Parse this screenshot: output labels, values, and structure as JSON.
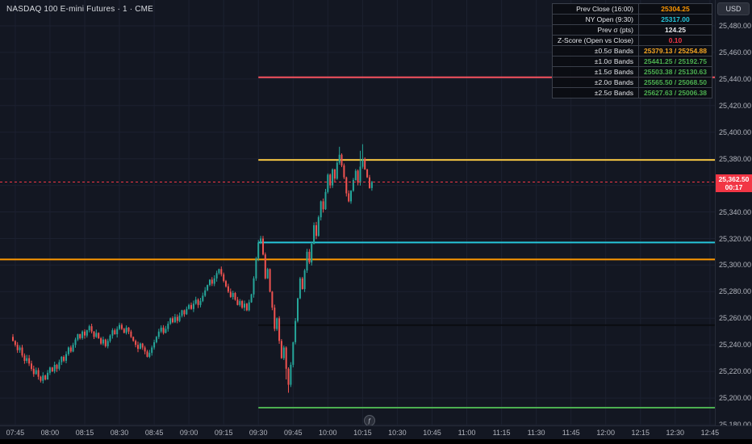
{
  "header": {
    "title": "NASDAQ 100 E-mini Futures · 1 · CME",
    "currency": "USD"
  },
  "stats_table": {
    "rows": [
      {
        "label": "Prev Close (16:00)",
        "value": "25304.25",
        "color": "#ff9800"
      },
      {
        "label": "NY Open (9:30)",
        "value": "25317.00",
        "color": "#26c6da"
      },
      {
        "label": "Prev σ (pts)",
        "value": "124.25",
        "color": "#e8eaed"
      },
      {
        "label": "Z-Score (Open vs Close)",
        "value": "0.10",
        "color": "#f23645"
      },
      {
        "label": "±0.5σ Bands",
        "value": "25379.13 / 25254.88",
        "color": "#f5a623"
      },
      {
        "label": "±1.0σ Bands",
        "value": "25441.25 / 25192.75",
        "color": "#4caf50"
      },
      {
        "label": "±1.5σ Bands",
        "value": "25503.38 / 25130.63",
        "color": "#4caf50"
      },
      {
        "label": "±2.0σ Bands",
        "value": "25565.50 / 25068.50",
        "color": "#4caf50"
      },
      {
        "label": "±2.5σ Bands",
        "value": "25627.63 / 25006.38",
        "color": "#4caf50"
      }
    ]
  },
  "price_axis": {
    "labels": [
      "25,480.00",
      "25,460.00",
      "25,440.00",
      "25,420.00",
      "25,400.00",
      "25,380.00",
      "25,360.00",
      "25,340.00",
      "25,320.00",
      "25,300.00",
      "25,280.00",
      "25,260.00",
      "25,240.00",
      "25,220.00",
      "25,200.00",
      "25,180.00"
    ],
    "top_price": 25480,
    "bottom_price": 25180,
    "step": 20
  },
  "time_axis": {
    "labels": [
      "07:45",
      "08:00",
      "08:15",
      "08:30",
      "08:45",
      "09:00",
      "09:15",
      "09:30",
      "09:45",
      "10:00",
      "10:15",
      "10:30",
      "10:45",
      "11:00",
      "11:15",
      "11:30",
      "11:45",
      "12:00",
      "12:15",
      "12:30",
      "12:45"
    ]
  },
  "current_price": {
    "value": "25,362.50",
    "countdown": "00:17",
    "price": 25362.5,
    "color": "#f23645"
  },
  "levels": [
    {
      "name": "prev-close",
      "price": 25304.25,
      "color": "#ff9800",
      "from_time": null,
      "width": 2
    },
    {
      "name": "ny-open",
      "price": 25317.0,
      "color": "#26c6da",
      "from_time": "09:30",
      "width": 2
    },
    {
      "name": "plus-0-5-sigma",
      "price": 25379.13,
      "color": "#f5c542",
      "from_time": "09:30",
      "width": 2
    },
    {
      "name": "minus-0-5-sigma",
      "price": 25254.88,
      "color": "#0a0c10",
      "from_time": "09:30",
      "width": 2
    },
    {
      "name": "plus-1-0-sigma",
      "price": 25441.25,
      "color": "#f7525f",
      "from_time": "09:30",
      "width": 2
    },
    {
      "name": "minus-1-0-sigma",
      "price": 25192.75,
      "color": "#4caf50",
      "from_time": "09:30",
      "width": 2
    }
  ],
  "marker": {
    "glyph": "ƒ",
    "time": "10:18"
  },
  "chart_data": {
    "type": "candlestick",
    "title": "NASDAQ 100 E-mini Futures",
    "exchange": "CME",
    "interval": "1m",
    "start_time": "07:44",
    "minutes_per_candle": 1,
    "price_range": [
      25180,
      25480
    ],
    "up_color": "#26a69a",
    "down_color": "#ef5350",
    "closes": [
      25243,
      25240,
      25236,
      25238,
      25232,
      25228,
      25230,
      25226,
      25222,
      25218,
      25221,
      25216,
      25213,
      25217,
      25214,
      25219,
      25223,
      25220,
      25225,
      25222,
      25227,
      25231,
      25228,
      25233,
      25238,
      25235,
      25240,
      25244,
      25248,
      25245,
      25250,
      25247,
      25251,
      25254,
      25250,
      25246,
      25249,
      25245,
      25241,
      25244,
      25239,
      25243,
      25247,
      25251,
      25248,
      25252,
      25255,
      25252,
      25249,
      25253,
      25250,
      25246,
      25243,
      25240,
      25237,
      25241,
      25238,
      25235,
      25231,
      25234,
      25238,
      25242,
      25246,
      25250,
      25253,
      25249,
      25252,
      25256,
      25260,
      25257,
      25261,
      25258,
      25262,
      25266,
      25263,
      25267,
      25270,
      25267,
      25271,
      25274,
      25270,
      25273,
      25277,
      25281,
      25285,
      25289,
      25286,
      25290,
      25294,
      25297,
      25293,
      25288,
      25284,
      25280,
      25276,
      25279,
      25274,
      25270,
      25273,
      25268,
      25271,
      25266,
      25272,
      25278,
      25290,
      25305,
      25317,
      25320,
      25308,
      25290,
      25297,
      25280,
      25268,
      25252,
      25260,
      25243,
      25230,
      25238,
      25222,
      25210,
      25225,
      25242,
      25258,
      25275,
      25290,
      25282,
      25296,
      25310,
      25302,
      25316,
      25330,
      25322,
      25336,
      25348,
      25342,
      25355,
      25368,
      25360,
      25372,
      25365,
      25377,
      25383,
      25375,
      25366,
      25354,
      25348,
      25356,
      25364,
      25371,
      25362,
      25374,
      25380,
      25372,
      25366,
      25358,
      25362.5
    ],
    "wick_overrides": {
      "106": {
        "high": 25319
      },
      "107": {
        "high": 25322
      },
      "118": {
        "low": 25214
      },
      "119": {
        "low": 25204
      },
      "141": {
        "high": 25389
      },
      "150": {
        "high": 25386
      },
      "151": {
        "high": 25391
      }
    }
  }
}
